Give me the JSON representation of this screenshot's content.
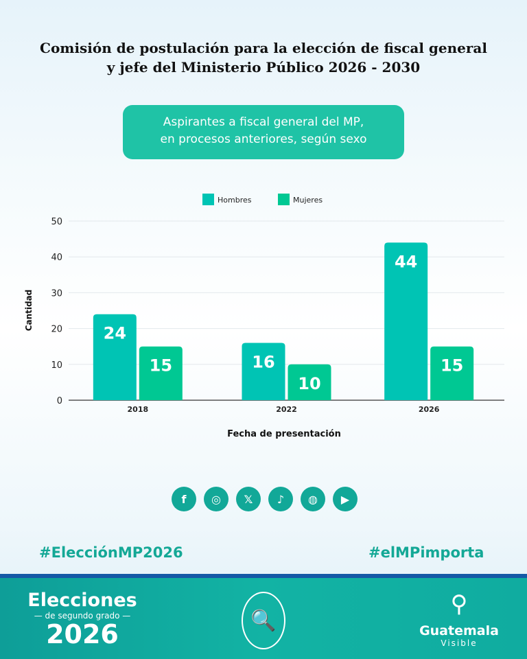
{
  "title": {
    "line1": "Comisión de postulación para la elección de fiscal general",
    "line2": "y jefe del Ministerio Público 2026 - 2030"
  },
  "subtitle": {
    "line1": "Aspirantes a fiscal general del MP,",
    "line2": "en procesos anteriores, según sexo"
  },
  "chart_data": {
    "type": "bar",
    "categories": [
      "2018",
      "2022",
      "2026"
    ],
    "series": [
      {
        "name": "Hombres",
        "values": [
          24,
          16,
          44
        ],
        "color": "#00c4b4"
      },
      {
        "name": "Mujeres",
        "values": [
          15,
          10,
          15
        ],
        "color": "#00c893"
      }
    ],
    "xlabel": "Fecha de presentación",
    "ylabel": "Cantidad",
    "ylim": [
      0,
      50
    ],
    "yticks": [
      "0",
      "10",
      "20",
      "30",
      "40",
      "50"
    ],
    "legend": "top-center",
    "grid": true
  },
  "social": [
    "facebook",
    "instagram",
    "x",
    "tiktok",
    "web",
    "youtube"
  ],
  "hashtags": {
    "left": "#ElecciónMP2026",
    "right": "#elMPimporta"
  },
  "footer": {
    "elecciones": "Elecciones",
    "segundo": "— de segundo grado —",
    "year": "2026",
    "brand": "Guatemala",
    "brand_sub": "Visible"
  }
}
